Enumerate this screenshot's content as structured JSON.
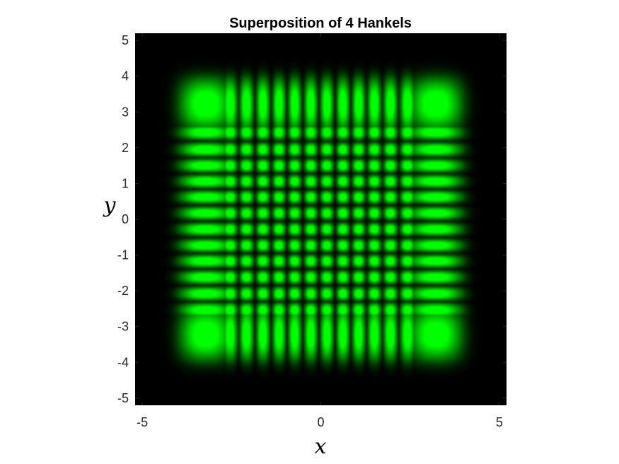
{
  "chart_data": {
    "type": "heatmap",
    "title": "Superposition of 4 Hankels",
    "xlabel": "x",
    "ylabel": "y",
    "xlim": [
      -5.2,
      5.2
    ],
    "ylim": [
      -5.2,
      5.2
    ],
    "xticks": [
      -5,
      0,
      5
    ],
    "xtick_labels": [
      "-5",
      "0",
      "5"
    ],
    "yticks": [
      5,
      4,
      3,
      2,
      1,
      0,
      -1,
      -2,
      -3,
      -4,
      -5
    ],
    "ytick_labels": [
      "5",
      "4",
      "3",
      "2",
      "1",
      "0",
      "-1",
      "-2",
      "-3",
      "-4",
      "-5"
    ],
    "colormap": [
      "#000000",
      "#00ff00"
    ],
    "background_color": "#000000",
    "grid": false,
    "pattern": {
      "description": "Product of standing waves: intensity = Ax(x) * Ay(y)",
      "lobe_centers": [
        -3.22,
        -2.54,
        -2.08,
        -1.62,
        -1.17,
        -0.73,
        -0.28,
        0.17,
        0.62,
        1.06,
        1.5,
        1.95,
        2.43,
        3.22
      ],
      "lobe_half_widths": [
        0.62,
        0.17,
        0.16,
        0.155,
        0.15,
        0.15,
        0.15,
        0.15,
        0.15,
        0.15,
        0.155,
        0.16,
        0.17,
        0.62
      ],
      "envelope_edge": 3.85,
      "envelope_sigma": 0.45
    }
  }
}
